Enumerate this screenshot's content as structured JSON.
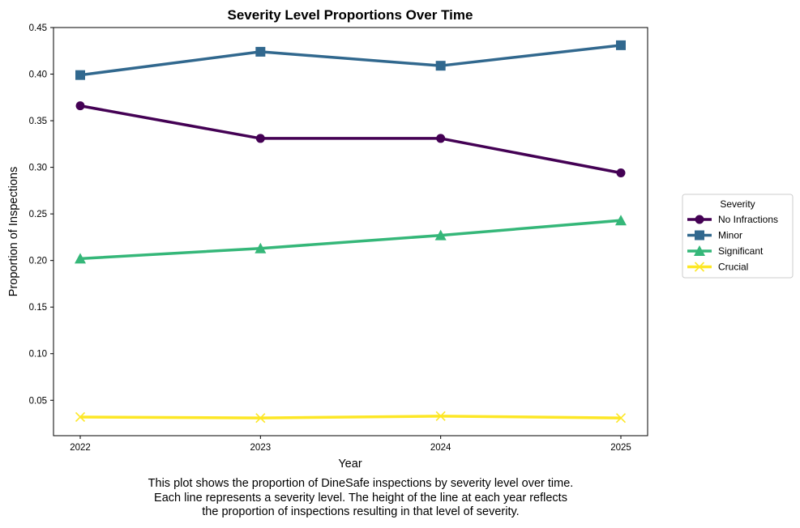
{
  "chart_data": {
    "type": "line",
    "title": "Severity Level Proportions Over Time",
    "xlabel": "Year",
    "ylabel": "Proportion of Inspections",
    "x": [
      2022,
      2023,
      2024,
      2025
    ],
    "x_tick_labels": [
      "2022",
      "2023",
      "2024",
      "2025"
    ],
    "ylim": [
      0.012,
      0.45
    ],
    "y_ticks": [
      0.05,
      0.1,
      0.15,
      0.2,
      0.25,
      0.3,
      0.35,
      0.4,
      0.45
    ],
    "y_tick_labels": [
      "0.05",
      "0.10",
      "0.15",
      "0.20",
      "0.25",
      "0.30",
      "0.35",
      "0.40",
      "0.45"
    ],
    "grid": false,
    "legend": {
      "title": "Severity",
      "position": "right-center"
    },
    "series": [
      {
        "name": "No Infractions",
        "values": [
          0.366,
          0.331,
          0.331,
          0.294
        ],
        "color": "#440154",
        "marker": "circle"
      },
      {
        "name": "Minor",
        "values": [
          0.399,
          0.424,
          0.409,
          0.431
        ],
        "color": "#31688e",
        "marker": "square"
      },
      {
        "name": "Significant",
        "values": [
          0.202,
          0.213,
          0.227,
          0.243
        ],
        "color": "#35b779",
        "marker": "triangle"
      },
      {
        "name": "Crucial",
        "values": [
          0.032,
          0.031,
          0.033,
          0.031
        ],
        "color": "#fde725",
        "marker": "x"
      }
    ]
  },
  "caption": {
    "lines": [
      "This plot shows the proportion of DineSafe inspections by severity level over time.",
      "Each line represents a severity level. The height of the line at each year reflects",
      "the proportion of inspections resulting in that level of severity."
    ]
  }
}
